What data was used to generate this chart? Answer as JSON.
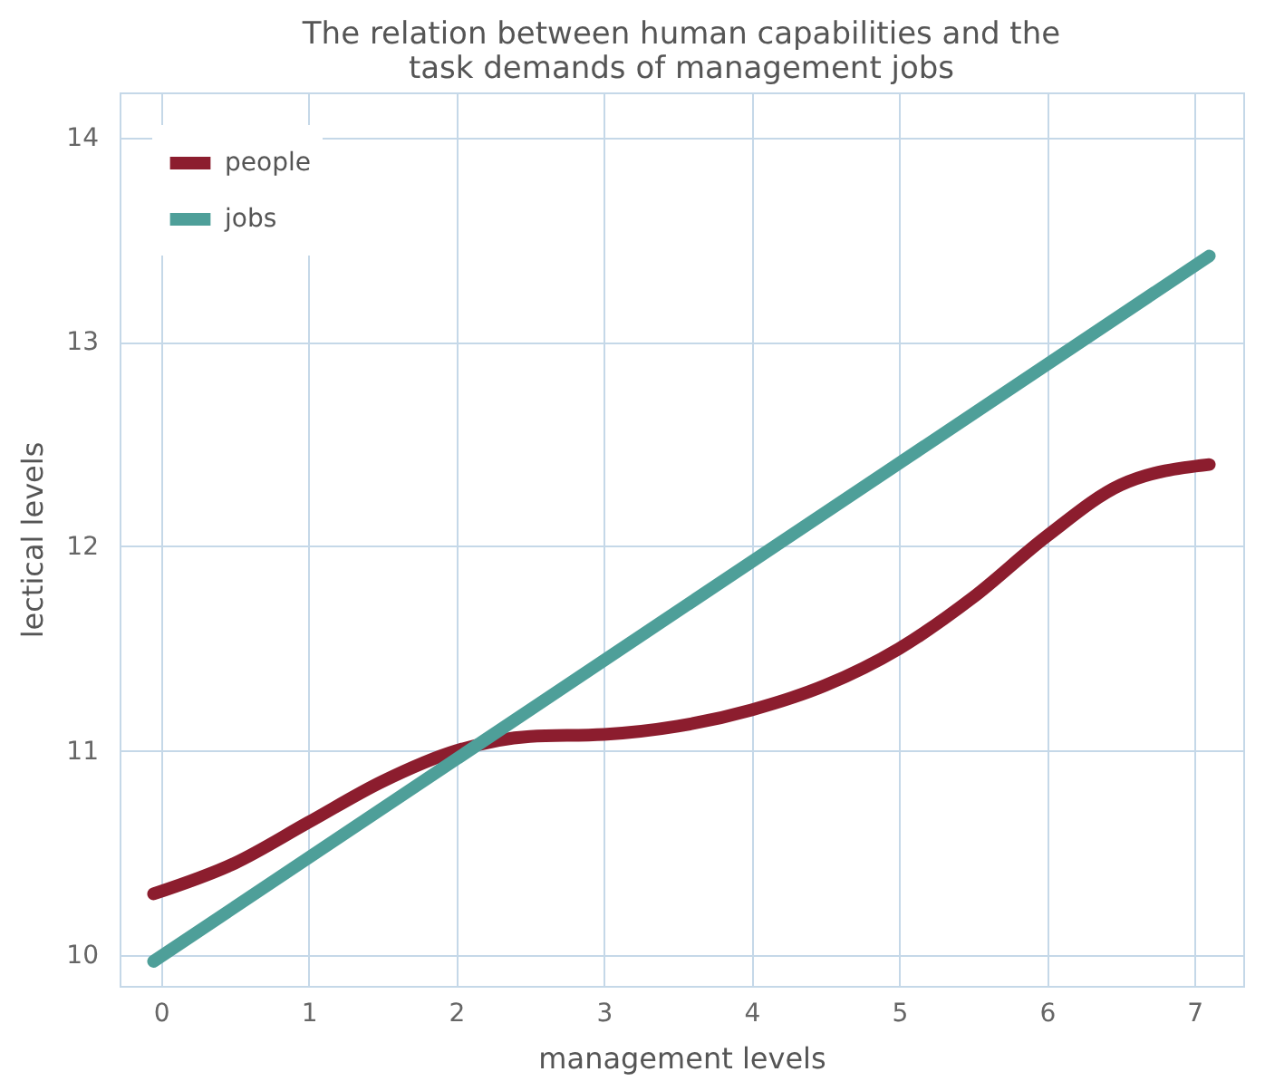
{
  "chart_data": {
    "type": "line",
    "title": "The relation between human capabilities and the\ntask demands of management jobs",
    "xlabel": "management levels",
    "ylabel": "lectical levels",
    "xlim": [
      -0.28,
      7.33
    ],
    "xticks": [
      0,
      1,
      2,
      3,
      4,
      5,
      6,
      7
    ],
    "ylim": [
      9.85,
      14.22
    ],
    "yticks": [
      10,
      11,
      12,
      13,
      14
    ],
    "grid": true,
    "legend": "top left",
    "line_style": "solid",
    "marker": "none",
    "series": [
      {
        "name": "people",
        "color": "#8c1d2e",
        "x": [
          -0.05,
          0.5,
          1,
          1.5,
          2,
          2.5,
          3,
          3.5,
          4,
          4.5,
          5,
          5.5,
          6,
          6.5,
          7.1
        ],
        "values": [
          10.3,
          10.45,
          10.65,
          10.85,
          11.0,
          11.07,
          11.08,
          11.12,
          11.2,
          11.32,
          11.5,
          11.75,
          12.05,
          12.3,
          12.4
        ]
      },
      {
        "name": "jobs",
        "color": "#4e9f99",
        "x": [
          -0.05,
          7.1
        ],
        "values": [
          9.97,
          13.42
        ]
      }
    ]
  }
}
